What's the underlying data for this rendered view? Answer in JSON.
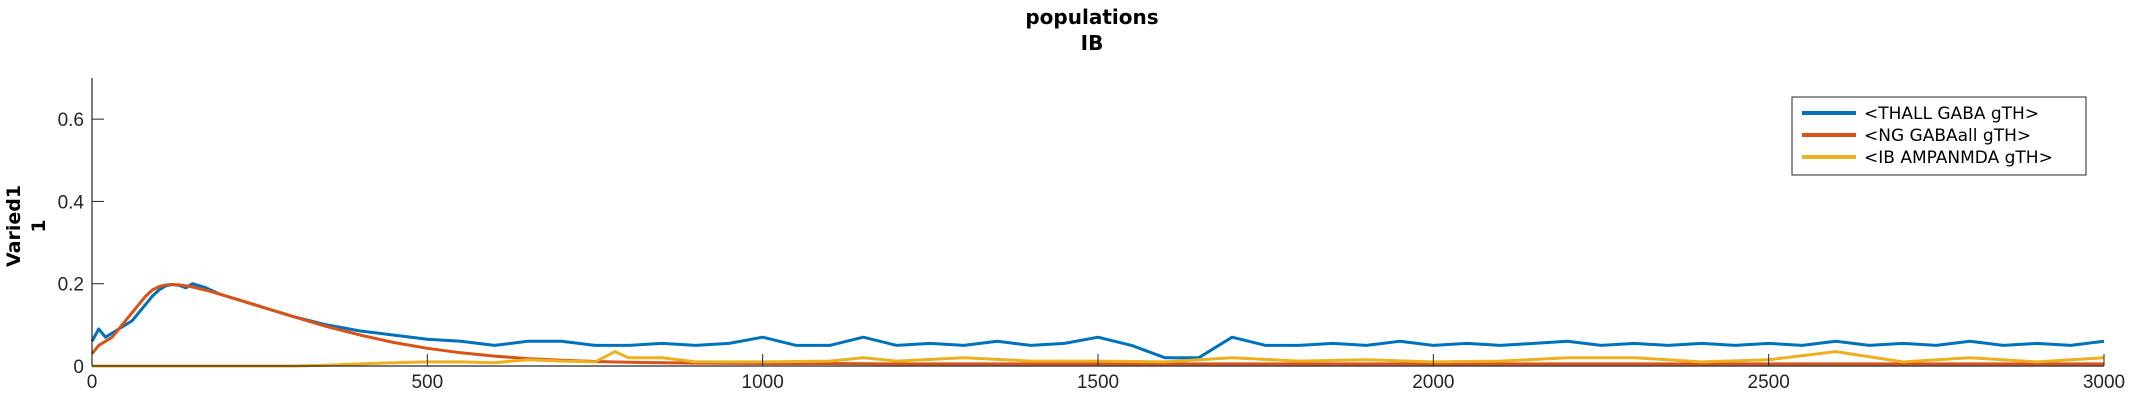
{
  "chart_data": {
    "type": "line",
    "title": [
      "populations",
      "IB"
    ],
    "ylabel": [
      "Varied1",
      "1"
    ],
    "xlabel": "",
    "xlim": [
      0,
      3000
    ],
    "ylim": [
      0,
      0.7
    ],
    "xticks": [
      0,
      500,
      1000,
      1500,
      2000,
      2500,
      3000
    ],
    "yticks": [
      0,
      0.2,
      0.4,
      0.6
    ],
    "ytick_labels": [
      "0",
      "0.2",
      "0.4",
      "0.6"
    ],
    "grid": false,
    "legend_position": "top-right",
    "series": [
      {
        "name": "<THALL GABA gTH>",
        "color": "#0072BD",
        "x": [
          0,
          10,
          20,
          30,
          40,
          50,
          60,
          70,
          80,
          90,
          100,
          110,
          120,
          130,
          140,
          150,
          170,
          190,
          210,
          230,
          250,
          270,
          300,
          350,
          400,
          450,
          500,
          550,
          600,
          650,
          700,
          750,
          800,
          850,
          900,
          950,
          1000,
          1050,
          1100,
          1150,
          1200,
          1250,
          1300,
          1350,
          1400,
          1450,
          1500,
          1550,
          1600,
          1650,
          1700,
          1750,
          1800,
          1850,
          1900,
          1950,
          2000,
          2050,
          2100,
          2150,
          2200,
          2250,
          2300,
          2350,
          2400,
          2450,
          2500,
          2550,
          2600,
          2650,
          2700,
          2750,
          2800,
          2850,
          2900,
          2950,
          3000
        ],
        "y": [
          0.06,
          0.09,
          0.07,
          0.08,
          0.09,
          0.1,
          0.11,
          0.13,
          0.15,
          0.17,
          0.185,
          0.195,
          0.198,
          0.196,
          0.19,
          0.2,
          0.19,
          0.175,
          0.165,
          0.155,
          0.145,
          0.135,
          0.12,
          0.1,
          0.085,
          0.075,
          0.065,
          0.06,
          0.05,
          0.06,
          0.06,
          0.05,
          0.05,
          0.055,
          0.05,
          0.055,
          0.07,
          0.05,
          0.05,
          0.07,
          0.05,
          0.055,
          0.05,
          0.06,
          0.05,
          0.055,
          0.07,
          0.05,
          0.02,
          0.02,
          0.07,
          0.05,
          0.05,
          0.055,
          0.05,
          0.06,
          0.05,
          0.055,
          0.05,
          0.055,
          0.06,
          0.05,
          0.055,
          0.05,
          0.055,
          0.05,
          0.055,
          0.05,
          0.06,
          0.05,
          0.055,
          0.05,
          0.06,
          0.05,
          0.055,
          0.05,
          0.06
        ]
      },
      {
        "name": "<NG GABAall gTH>",
        "color": "#D95319",
        "x": [
          0,
          10,
          20,
          30,
          40,
          50,
          60,
          70,
          80,
          90,
          100,
          110,
          120,
          130,
          140,
          150,
          175,
          200,
          250,
          300,
          350,
          400,
          450,
          500,
          550,
          600,
          650,
          700,
          750,
          800,
          900,
          1000,
          1100,
          1200,
          1300,
          1400,
          1500,
          1600,
          1700,
          1800,
          1900,
          2000,
          2100,
          2200,
          2300,
          2400,
          2500,
          2600,
          2700,
          2800,
          2900,
          3000
        ],
        "y": [
          0.03,
          0.05,
          0.06,
          0.07,
          0.09,
          0.11,
          0.13,
          0.15,
          0.17,
          0.185,
          0.193,
          0.197,
          0.198,
          0.197,
          0.195,
          0.192,
          0.182,
          0.17,
          0.145,
          0.12,
          0.096,
          0.075,
          0.057,
          0.043,
          0.032,
          0.024,
          0.018,
          0.014,
          0.011,
          0.009,
          0.007,
          0.006,
          0.006,
          0.005,
          0.005,
          0.005,
          0.005,
          0.005,
          0.005,
          0.005,
          0.005,
          0.005,
          0.005,
          0.005,
          0.005,
          0.005,
          0.005,
          0.005,
          0.005,
          0.005,
          0.005,
          0.005
        ]
      },
      {
        "name": "<IB AMPANMDA gTH>",
        "color": "#EDB120",
        "x": [
          0,
          100,
          200,
          300,
          350,
          400,
          450,
          500,
          550,
          600,
          650,
          700,
          750,
          780,
          800,
          850,
          900,
          1000,
          1100,
          1150,
          1200,
          1300,
          1400,
          1500,
          1600,
          1700,
          1800,
          1900,
          2000,
          2100,
          2200,
          2300,
          2400,
          2500,
          2600,
          2700,
          2800,
          2900,
          3000
        ],
        "y": [
          0,
          0,
          0,
          0,
          0.002,
          0.005,
          0.008,
          0.01,
          0.01,
          0.008,
          0.015,
          0.012,
          0.01,
          0.035,
          0.02,
          0.02,
          0.01,
          0.01,
          0.012,
          0.02,
          0.012,
          0.02,
          0.012,
          0.012,
          0.01,
          0.02,
          0.012,
          0.015,
          0.01,
          0.012,
          0.02,
          0.02,
          0.01,
          0.015,
          0.035,
          0.01,
          0.02,
          0.01,
          0.02
        ]
      }
    ]
  }
}
